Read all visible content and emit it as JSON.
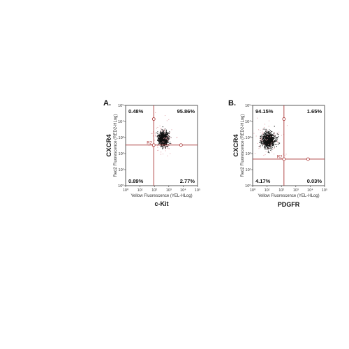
{
  "panels": [
    {
      "letter": "A.",
      "y_marker": "CXCR4",
      "x_marker": "c-Kit",
      "region": "R2",
      "chart_data": {
        "type": "scatter",
        "xlabel": "Yellow Fluorescence (YEL-HLog)",
        "ylabel": "Red2 Fluorescence (RED2-HLog)",
        "x_scale": "log",
        "y_scale": "log",
        "xlim": [
          1,
          100000
        ],
        "ylim": [
          1,
          100000
        ],
        "x_ticks": [
          "10⁰",
          "10¹",
          "10²",
          "10³",
          "10⁴",
          "10⁵"
        ],
        "y_ticks": [
          "10⁰",
          "10¹",
          "10²",
          "10³",
          "10⁴",
          "10⁵"
        ],
        "gate": {
          "x": 90,
          "y": 340
        },
        "quadrants": {
          "upper_left": "0.48%",
          "upper_right": "95.86%",
          "lower_left": "0.89%",
          "lower_right": "2.77%"
        },
        "population": {
          "center_x": 400,
          "center_y": 900,
          "spread_log_x": 0.16,
          "spread_log_y": 0.2
        }
      }
    },
    {
      "letter": "B.",
      "y_marker": "CXCR4",
      "x_marker": "PDGFR",
      "region": "R2",
      "chart_data": {
        "type": "scatter",
        "xlabel": "Yellow Fluorescence (YEL-HLog)",
        "ylabel": "Red2 Fluorescence (RED2-HLog)",
        "x_scale": "log",
        "y_scale": "log",
        "xlim": [
          1,
          100000
        ],
        "ylim": [
          1,
          100000
        ],
        "x_ticks": [
          "10⁰",
          "10¹",
          "10²",
          "10³",
          "10⁴",
          "10⁵"
        ],
        "y_ticks": [
          "10⁰",
          "10¹",
          "10²",
          "10³",
          "10⁴",
          "10⁵"
        ],
        "gate": {
          "x": 150,
          "y": 45
        },
        "quadrants": {
          "upper_left": "94.15%",
          "upper_right": "1.65%",
          "lower_left": "4.17%",
          "lower_right": "0.03%"
        },
        "population": {
          "center_x": 12,
          "center_y": 700,
          "spread_log_x": 0.22,
          "spread_log_y": 0.22
        }
      }
    }
  ],
  "colors": {
    "dots": "#111111",
    "gate": "#a83232",
    "frame": "#333333"
  }
}
